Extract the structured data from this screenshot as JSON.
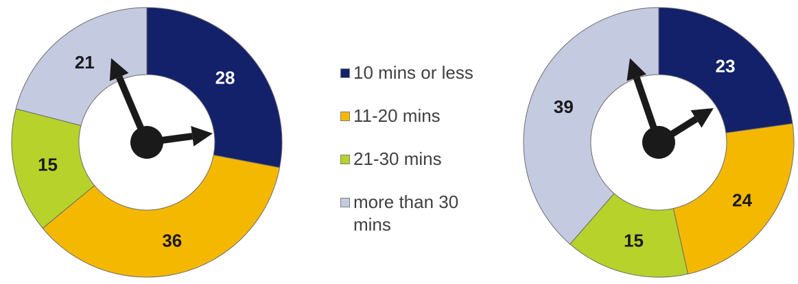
{
  "chart_data": [
    {
      "type": "donut",
      "categories": [
        "10 mins or less",
        "11-20 mins",
        "21-30 mins",
        "more than 30 mins"
      ],
      "values": [
        28,
        36,
        15,
        21
      ],
      "colors": [
        "#13216a",
        "#f5b800",
        "#b7d22a",
        "#c4cae0"
      ],
      "label_colors": [
        "#ffffff",
        "#1a1a1a",
        "#1a1a1a",
        "#1a1a1a"
      ],
      "center_icon": "clock-hands-icon"
    },
    {
      "type": "donut",
      "categories": [
        "10 mins or less",
        "11-20 mins",
        "21-30 mins",
        "more than 30 mins"
      ],
      "values": [
        23,
        24,
        15,
        39
      ],
      "colors": [
        "#13216a",
        "#f5b800",
        "#b7d22a",
        "#c4cae0"
      ],
      "label_colors": [
        "#ffffff",
        "#1a1a1a",
        "#1a1a1a",
        "#1a1a1a"
      ],
      "center_icon": "clock-hands-icon"
    }
  ],
  "legend": {
    "items": [
      {
        "label": "10 mins or less",
        "color": "#13216a"
      },
      {
        "label": "11-20 mins",
        "color": "#f5b800"
      },
      {
        "label": "21-30 mins",
        "color": "#b7d22a"
      },
      {
        "label": "more than 30 mins",
        "color": "#c4cae0"
      }
    ]
  }
}
